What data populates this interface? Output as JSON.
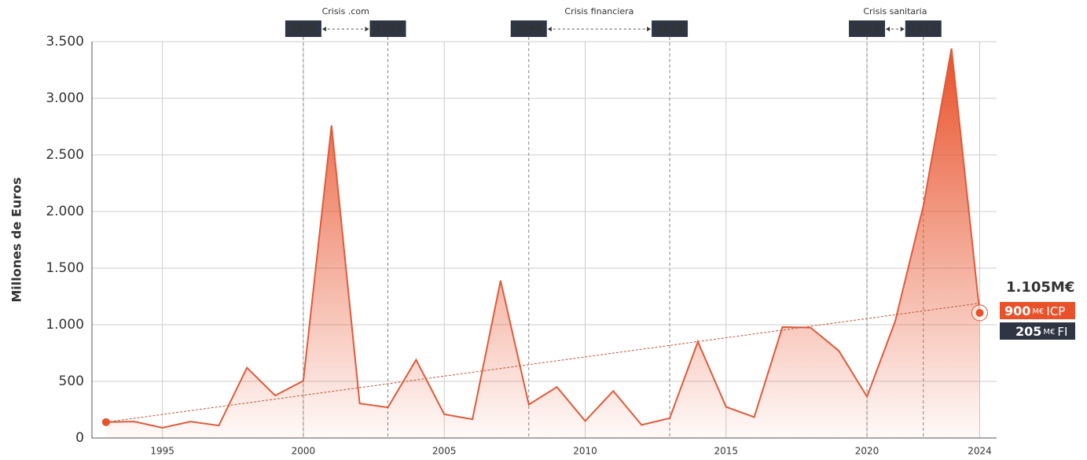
{
  "chart_data": {
    "type": "area",
    "ylabel": "Millones de Euros",
    "x": [
      1993,
      1994,
      1995,
      1996,
      1997,
      1998,
      1999,
      2000,
      2001,
      2002,
      2003,
      2004,
      2005,
      2006,
      2007,
      2008,
      2009,
      2010,
      2011,
      2012,
      2013,
      2014,
      2015,
      2016,
      2017,
      2018,
      2019,
      2020,
      2021,
      2022,
      2023,
      2024
    ],
    "values": [
      140,
      145,
      90,
      145,
      110,
      620,
      375,
      505,
      2760,
      305,
      270,
      690,
      210,
      165,
      1390,
      295,
      450,
      150,
      415,
      115,
      175,
      850,
      275,
      185,
      980,
      975,
      770,
      365,
      1030,
      2050,
      3440,
      1105
    ],
    "color": "#e8512a",
    "trend": {
      "x": [
        1993,
        2024
      ],
      "values": [
        140,
        1190
      ],
      "color": "#c0563a"
    },
    "xlim": [
      1992.5,
      2024.6
    ],
    "xticks": [
      1995,
      2000,
      2005,
      2010,
      2015,
      2020,
      2024
    ],
    "ylim": [
      0,
      3500
    ],
    "yticks": [
      0,
      500,
      {
        "value": 1000,
        "label": "1.000"
      },
      {
        "value": 1500,
        "label": "1.500"
      },
      {
        "value": 2000,
        "label": "2.000"
      },
      {
        "value": 2500,
        "label": "2.500"
      },
      {
        "value": 3000,
        "label": "3.000"
      },
      {
        "value": 3500,
        "label": "3.500"
      }
    ],
    "grid": true,
    "crises": [
      {
        "label": "Crisis .com",
        "start": 2000,
        "end": 2003
      },
      {
        "label": "Crisis financiera",
        "start": 2008,
        "end": 2013
      },
      {
        "label": "Crisis sanitaria",
        "start": 2020,
        "end": 2022
      }
    ],
    "callout": {
      "total": "1.105M€",
      "icp": 900,
      "icp_unit": "M€",
      "icp_label": "ICP",
      "fi": 205,
      "fi_unit": "M€",
      "fi_label": "FI"
    }
  }
}
